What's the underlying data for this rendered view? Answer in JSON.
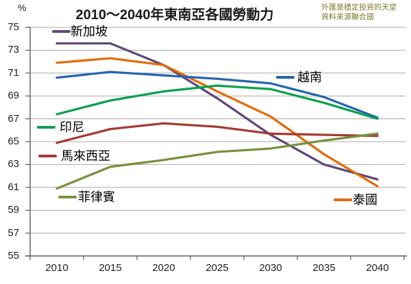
{
  "header": {
    "title": "2010～2040年東南亞各國勞動力",
    "note_line1": "外匯是穩定投資的天堂",
    "note_line2": "資料來源聯合國",
    "note_color": "#7d7a2c",
    "y_unit": "%"
  },
  "axes": {
    "y_ticks": [
      75,
      73,
      71,
      69,
      67,
      65,
      63,
      61,
      59,
      57,
      55
    ],
    "x_ticks": [
      2010,
      2015,
      2020,
      2025,
      2030,
      2035,
      2040
    ],
    "grid_color": "#a8a8a8",
    "axis_color": "#5a5a5a"
  },
  "chart_data": {
    "type": "line",
    "title": "2010～2040年東南亞各國勞動力",
    "x": [
      2010,
      2015,
      2020,
      2025,
      2030,
      2035,
      2040
    ],
    "xlabel": "",
    "ylabel": "%",
    "ylim": [
      55,
      75
    ],
    "ytick_step": 2,
    "grid": true,
    "legend_position": "floating-labels-near-lines",
    "series": [
      {
        "id": "singapore",
        "name": "新加坡",
        "color": "#5f497a",
        "values": [
          73.6,
          73.6,
          71.7,
          68.8,
          65.6,
          63.0,
          61.7
        ]
      },
      {
        "id": "thailand",
        "name": "泰國",
        "color": "#e36c09",
        "values": [
          71.9,
          72.3,
          71.7,
          69.4,
          67.2,
          63.9,
          61.1
        ]
      },
      {
        "id": "vietnam",
        "name": "越南",
        "color": "#2566ae",
        "values": [
          70.6,
          71.1,
          70.8,
          70.5,
          70.1,
          68.9,
          67.1
        ]
      },
      {
        "id": "indonesia",
        "name": "印尼",
        "color": "#0ca14f",
        "values": [
          67.4,
          68.6,
          69.4,
          69.9,
          69.6,
          68.4,
          67.0
        ]
      },
      {
        "id": "malaysia",
        "name": "馬來西亞",
        "color": "#a33b33",
        "values": [
          64.9,
          66.1,
          66.6,
          66.3,
          65.7,
          65.6,
          65.5
        ]
      },
      {
        "id": "philippines",
        "name": "菲律賓",
        "color": "#76923c",
        "values": [
          60.9,
          62.8,
          63.4,
          64.1,
          64.4,
          65.1,
          65.7
        ]
      }
    ]
  }
}
